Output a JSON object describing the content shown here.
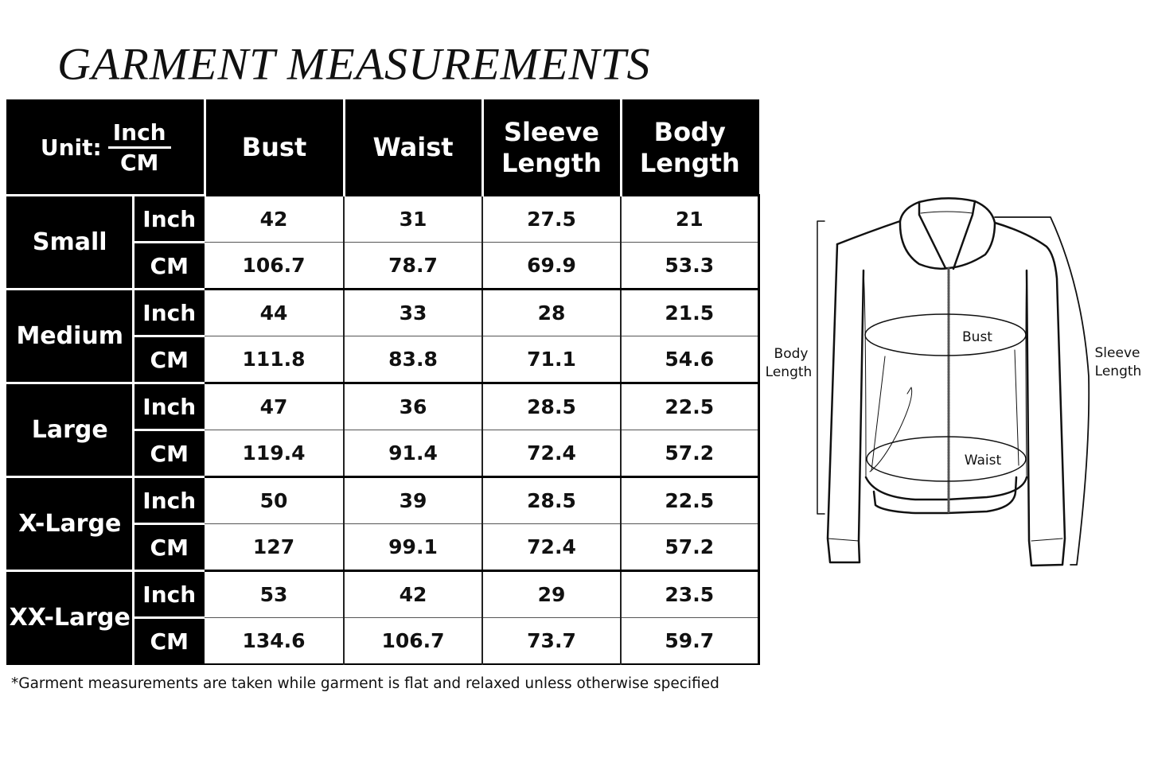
{
  "title": "GARMENT MEASUREMENTS",
  "table": {
    "unit_label": "Unit:",
    "unit_options": [
      "Inch",
      "CM"
    ],
    "columns": [
      "Bust",
      "Waist",
      "Sleeve Length",
      "Body Length"
    ],
    "sizes": [
      {
        "name": "Small",
        "rows": [
          {
            "unit": "Inch",
            "values": [
              "42",
              "31",
              "27.5",
              "21"
            ]
          },
          {
            "unit": "CM",
            "values": [
              "106.7",
              "78.7",
              "69.9",
              "53.3"
            ]
          }
        ]
      },
      {
        "name": "Medium",
        "rows": [
          {
            "unit": "Inch",
            "values": [
              "44",
              "33",
              "28",
              "21.5"
            ]
          },
          {
            "unit": "CM",
            "values": [
              "111.8",
              "83.8",
              "71.1",
              "54.6"
            ]
          }
        ]
      },
      {
        "name": "Large",
        "rows": [
          {
            "unit": "Inch",
            "values": [
              "47",
              "36",
              "28.5",
              "22.5"
            ]
          },
          {
            "unit": "CM",
            "values": [
              "119.4",
              "91.4",
              "72.4",
              "57.2"
            ]
          }
        ]
      },
      {
        "name": "X-Large",
        "rows": [
          {
            "unit": "Inch",
            "values": [
              "50",
              "39",
              "28.5",
              "22.5"
            ]
          },
          {
            "unit": "CM",
            "values": [
              "127",
              "99.1",
              "72.4",
              "57.2"
            ]
          }
        ]
      },
      {
        "name": "XX-Large",
        "rows": [
          {
            "unit": "Inch",
            "values": [
              "53",
              "42",
              "29",
              "23.5"
            ]
          },
          {
            "unit": "CM",
            "values": [
              "134.6",
              "106.7",
              "73.7",
              "59.7"
            ]
          }
        ]
      }
    ]
  },
  "footnote": "*Garment measurements are taken while garment is flat and relaxed unless otherwise specified",
  "diagram": {
    "labels": {
      "body_length": [
        "Body",
        "Length"
      ],
      "bust": "Bust",
      "waist": "Waist",
      "sleeve_length": [
        "Sleeve",
        "Length"
      ]
    }
  }
}
